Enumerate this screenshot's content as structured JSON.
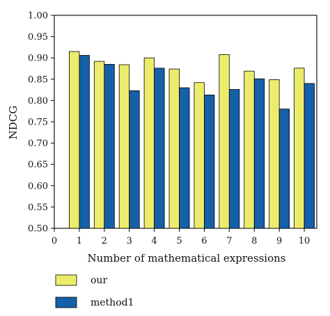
{
  "chart_data": {
    "type": "bar",
    "xlabel": "Number of mathematical expressions",
    "ylabel": "NDCG",
    "ylim": [
      0.5,
      1.0
    ],
    "yticks": [
      "0.50",
      "0.55",
      "0.60",
      "0.65",
      "0.70",
      "0.75",
      "0.80",
      "0.85",
      "0.90",
      "0.95",
      "1.00"
    ],
    "xticks": [
      "0",
      "1",
      "2",
      "3",
      "4",
      "5",
      "6",
      "7",
      "8",
      "9",
      "10"
    ],
    "categories": [
      "1",
      "2",
      "3",
      "4",
      "5",
      "6",
      "7",
      "8",
      "9",
      "10"
    ],
    "series": [
      {
        "name": "our",
        "color": "#ECEC6C",
        "values": [
          0.915,
          0.892,
          0.884,
          0.9,
          0.874,
          0.842,
          0.908,
          0.869,
          0.849,
          0.876
        ]
      },
      {
        "name": "method1",
        "color": "#1560A8",
        "values": [
          0.906,
          0.885,
          0.823,
          0.876,
          0.83,
          0.813,
          0.826,
          0.851,
          0.78,
          0.84
        ]
      }
    ],
    "grid": false,
    "legend_position": "bottom-left"
  }
}
